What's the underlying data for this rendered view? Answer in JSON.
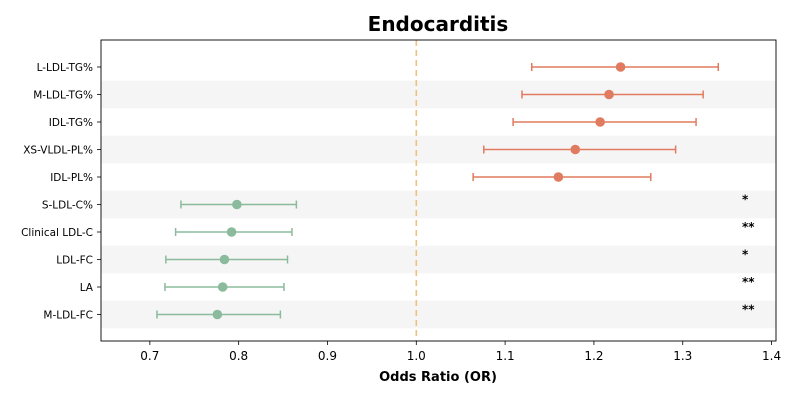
{
  "chart_data": {
    "type": "forest",
    "title": "Endocarditis",
    "xlabel": "Odds Ratio (OR)",
    "ylabel": "",
    "xlim": [
      0.645,
      1.405
    ],
    "xticks": [
      0.7,
      0.8,
      0.9,
      1.0,
      1.1,
      1.2,
      1.3,
      1.4
    ],
    "reference_line": 1.0,
    "grid": false,
    "alternating_row_bands": true,
    "colors": {
      "risk": "#e07b5f",
      "protective": "#8bbb9c",
      "reference_line": "#f0c080",
      "band": "#f5f5f5"
    },
    "rows": [
      {
        "label": "L-LDL-TG%",
        "or": 1.23,
        "lower": 1.13,
        "upper": 1.34,
        "significance": "",
        "group": "risk"
      },
      {
        "label": "M-LDL-TG%",
        "or": 1.217,
        "lower": 1.119,
        "upper": 1.323,
        "significance": "",
        "group": "risk"
      },
      {
        "label": "IDL-TG%",
        "or": 1.207,
        "lower": 1.109,
        "upper": 1.315,
        "significance": "",
        "group": "risk"
      },
      {
        "label": "XS-VLDL-PL%",
        "or": 1.179,
        "lower": 1.076,
        "upper": 1.292,
        "significance": "",
        "group": "risk"
      },
      {
        "label": "IDL-PL%",
        "or": 1.16,
        "lower": 1.064,
        "upper": 1.264,
        "significance": "",
        "group": "risk"
      },
      {
        "label": "S-LDL-C%",
        "or": 0.798,
        "lower": 0.735,
        "upper": 0.865,
        "significance": "*",
        "group": "protective"
      },
      {
        "label": "Clinical LDL-C",
        "or": 0.792,
        "lower": 0.729,
        "upper": 0.86,
        "significance": "**",
        "group": "protective"
      },
      {
        "label": "LDL-FC",
        "or": 0.784,
        "lower": 0.718,
        "upper": 0.855,
        "significance": "*",
        "group": "protective"
      },
      {
        "label": "LA",
        "or": 0.782,
        "lower": 0.717,
        "upper": 0.851,
        "significance": "**",
        "group": "protective"
      },
      {
        "label": "M-LDL-FC",
        "or": 0.776,
        "lower": 0.708,
        "upper": 0.847,
        "significance": "**",
        "group": "protective"
      }
    ]
  }
}
